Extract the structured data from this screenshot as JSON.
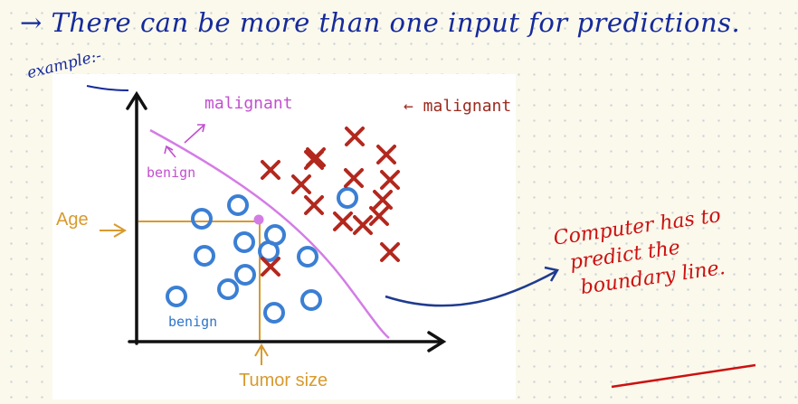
{
  "notes": {
    "heading": "→ There can be more than one input for predictions.",
    "example": "example:-",
    "annotation": [
      "Computer has to",
      "predict the",
      "boundary line."
    ]
  },
  "figure": {
    "labels": {
      "malignant_region": "malignant",
      "malignant_points": "← malignant",
      "benign_region": "benign",
      "benign_points": "benign",
      "y_axis": "Age",
      "x_axis": "Tumor size"
    },
    "colors": {
      "boundary": "#d47ce6",
      "malignant": "#b3281e",
      "benign": "#3b7fd4",
      "axis_label": "#d89a2e",
      "note_ink": "#cc1111",
      "heading_ink": "#152a9c"
    }
  }
}
